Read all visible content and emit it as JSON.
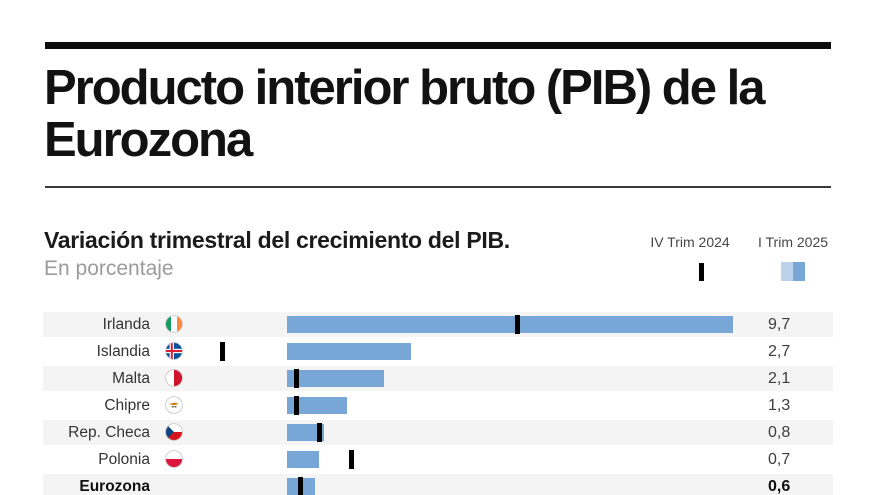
{
  "header": {
    "title": "Producto interior bruto (PIB) de la Eurozona"
  },
  "chart_header": {
    "subtitle": "Variación trimestral del crecimiento del PIB.",
    "unit": "En porcentaje"
  },
  "legend": {
    "marker_label": "IV Trim 2024",
    "bar_label": "I Trim 2025"
  },
  "colors": {
    "bar": "#78A6D6",
    "bar_light": "#BDD1E9",
    "marker": "#000000",
    "row_alt": "#F4F4F4",
    "row_plain": "#FFFFFF",
    "grid": "#E2E2E2",
    "zero_line": "#777777",
    "accent_rule": "#0D0D0D"
  },
  "chart_data": {
    "type": "bar",
    "orientation": "horizontal",
    "title": "Variación trimestral del crecimiento del PIB.",
    "unit": "En porcentaje",
    "categories": [
      "Irlanda",
      "Islandia",
      "Malta",
      "Chipre",
      "Rep. Checa",
      "Polonia",
      "Eurozona"
    ],
    "series": [
      {
        "name": "IV Trim 2024",
        "style": "marker",
        "values": [
          5.0,
          -1.4,
          0.2,
          0.2,
          0.7,
          1.4,
          0.3
        ]
      },
      {
        "name": "I Trim 2025",
        "style": "bar",
        "values": [
          9.7,
          2.7,
          2.1,
          1.3,
          0.8,
          0.7,
          0.6
        ]
      }
    ],
    "value_labels": [
      "9,7",
      "2,7",
      "2,1",
      "1,3",
      "0,8",
      "0,7",
      "0,6"
    ],
    "flags": [
      "ireland",
      "iceland",
      "malta",
      "cyprus",
      "czech-republic",
      "poland",
      null
    ],
    "highlight_category": "Eurozona",
    "xlim": [
      -2.3,
      11.9
    ],
    "gridlines": [
      -2,
      0,
      2,
      4,
      6,
      8,
      10
    ],
    "grid": true,
    "legend_position": "top-right"
  }
}
